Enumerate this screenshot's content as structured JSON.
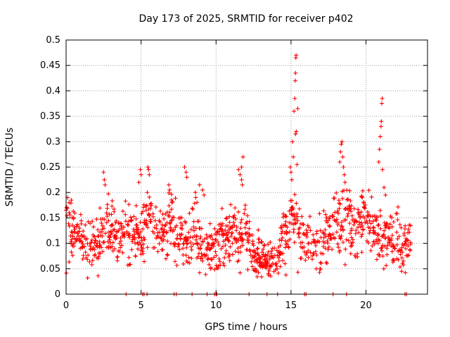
{
  "chart_data": {
    "type": "scatter",
    "title": "Day 173 of 2025, SRMTID for receiver p402",
    "xlabel": "GPS time / hours",
    "ylabel": "SRMTID / TECUs",
    "xlim": [
      0,
      24.1
    ],
    "ylim": [
      0,
      0.5
    ],
    "xticks": [
      0,
      5,
      10,
      15,
      20
    ],
    "xtick_labels": [
      "0",
      "5",
      "10",
      "15",
      "20"
    ],
    "yticks": [
      0,
      0.05,
      0.1,
      0.15,
      0.2,
      0.25,
      0.3,
      0.35,
      0.4,
      0.45,
      0.5
    ],
    "ytick_labels": [
      "0",
      "0.05",
      "0.1",
      "0.15",
      "0.2",
      "0.25",
      "0.3",
      "0.35",
      "0.4",
      "0.45",
      "0.5"
    ],
    "grid": true,
    "marker": "+",
    "color": "#ff0000",
    "series": [
      {
        "name": "SRMTID",
        "profile": {
          "x": [
            0,
            0.5,
            1,
            1.5,
            2,
            2.5,
            3,
            3.5,
            4,
            4.5,
            5,
            5.5,
            6,
            6.5,
            7,
            7.5,
            8,
            8.5,
            9,
            9.5,
            10,
            10.5,
            11,
            11.5,
            12,
            12.5,
            13,
            13.5,
            14,
            14.5,
            15,
            15.5,
            16,
            16.5,
            17,
            17.5,
            18,
            18.5,
            19,
            19.5,
            20,
            20.5,
            21,
            21.5,
            22,
            22.5,
            23
          ],
          "mean": [
            0.14,
            0.12,
            0.11,
            0.09,
            0.1,
            0.12,
            0.13,
            0.11,
            0.13,
            0.12,
            0.11,
            0.15,
            0.13,
            0.12,
            0.14,
            0.12,
            0.11,
            0.13,
            0.1,
            0.08,
            0.09,
            0.11,
            0.12,
            0.11,
            0.12,
            0.08,
            0.07,
            0.07,
            0.06,
            0.1,
            0.14,
            0.13,
            0.11,
            0.09,
            0.1,
            0.12,
            0.13,
            0.17,
            0.13,
            0.14,
            0.16,
            0.13,
            0.11,
            0.12,
            0.1,
            0.09,
            0.1
          ],
          "spread": [
            0.04,
            0.03,
            0.03,
            0.03,
            0.03,
            0.04,
            0.03,
            0.03,
            0.03,
            0.03,
            0.03,
            0.04,
            0.03,
            0.03,
            0.04,
            0.03,
            0.03,
            0.04,
            0.03,
            0.03,
            0.03,
            0.03,
            0.03,
            0.03,
            0.03,
            0.02,
            0.02,
            0.02,
            0.02,
            0.03,
            0.04,
            0.03,
            0.03,
            0.03,
            0.03,
            0.03,
            0.04,
            0.05,
            0.04,
            0.04,
            0.04,
            0.03,
            0.03,
            0.03,
            0.03,
            0.03,
            0.02
          ]
        },
        "spikes": [
          {
            "x": 0.1,
            "y": 0.19
          },
          {
            "x": 0.2,
            "y": 0.18
          },
          {
            "x": 0.35,
            "y": 0.185
          },
          {
            "x": 2.5,
            "y": 0.24
          },
          {
            "x": 2.55,
            "y": 0.225
          },
          {
            "x": 2.6,
            "y": 0.215
          },
          {
            "x": 4.95,
            "y": 0.245
          },
          {
            "x": 5.0,
            "y": 0.235
          },
          {
            "x": 4.85,
            "y": 0.22
          },
          {
            "x": 5.45,
            "y": 0.25
          },
          {
            "x": 5.5,
            "y": 0.245
          },
          {
            "x": 5.55,
            "y": 0.235
          },
          {
            "x": 6.85,
            "y": 0.215
          },
          {
            "x": 6.9,
            "y": 0.205
          },
          {
            "x": 7.9,
            "y": 0.25
          },
          {
            "x": 8.0,
            "y": 0.24
          },
          {
            "x": 8.05,
            "y": 0.23
          },
          {
            "x": 8.9,
            "y": 0.215
          },
          {
            "x": 9.1,
            "y": 0.205
          },
          {
            "x": 9.2,
            "y": 0.195
          },
          {
            "x": 11.5,
            "y": 0.245
          },
          {
            "x": 11.6,
            "y": 0.235
          },
          {
            "x": 11.7,
            "y": 0.225
          },
          {
            "x": 11.75,
            "y": 0.215
          },
          {
            "x": 11.8,
            "y": 0.27
          },
          {
            "x": 11.7,
            "y": 0.25
          },
          {
            "x": 14.95,
            "y": 0.25
          },
          {
            "x": 15.0,
            "y": 0.24
          },
          {
            "x": 15.05,
            "y": 0.225
          },
          {
            "x": 15.1,
            "y": 0.3
          },
          {
            "x": 15.15,
            "y": 0.27
          },
          {
            "x": 15.2,
            "y": 0.36
          },
          {
            "x": 15.25,
            "y": 0.385
          },
          {
            "x": 15.28,
            "y": 0.42
          },
          {
            "x": 15.3,
            "y": 0.435
          },
          {
            "x": 15.32,
            "y": 0.465
          },
          {
            "x": 15.34,
            "y": 0.47
          },
          {
            "x": 15.3,
            "y": 0.315
          },
          {
            "x": 15.35,
            "y": 0.32
          },
          {
            "x": 15.4,
            "y": 0.255
          },
          {
            "x": 15.45,
            "y": 0.365
          },
          {
            "x": 18.25,
            "y": 0.26
          },
          {
            "x": 18.3,
            "y": 0.28
          },
          {
            "x": 18.35,
            "y": 0.295
          },
          {
            "x": 18.4,
            "y": 0.3
          },
          {
            "x": 18.45,
            "y": 0.27
          },
          {
            "x": 18.5,
            "y": 0.25
          },
          {
            "x": 18.55,
            "y": 0.235
          },
          {
            "x": 18.6,
            "y": 0.22
          },
          {
            "x": 20.85,
            "y": 0.26
          },
          {
            "x": 20.9,
            "y": 0.285
          },
          {
            "x": 20.95,
            "y": 0.31
          },
          {
            "x": 21.0,
            "y": 0.33
          },
          {
            "x": 21.02,
            "y": 0.34
          },
          {
            "x": 21.05,
            "y": 0.375
          },
          {
            "x": 21.08,
            "y": 0.385
          },
          {
            "x": 21.1,
            "y": 0.245
          },
          {
            "x": 21.2,
            "y": 0.21
          },
          {
            "x": 21.3,
            "y": 0.195
          }
        ],
        "zeros": [
          4.0,
          5.1,
          5.2,
          5.4,
          7.2,
          7.35,
          8.4,
          9.4,
          9.9,
          10.0,
          10.05,
          12.2,
          13.4,
          14.1,
          15.9,
          16.0,
          17.8,
          18.7,
          22.6,
          22.7
        ]
      }
    ]
  }
}
